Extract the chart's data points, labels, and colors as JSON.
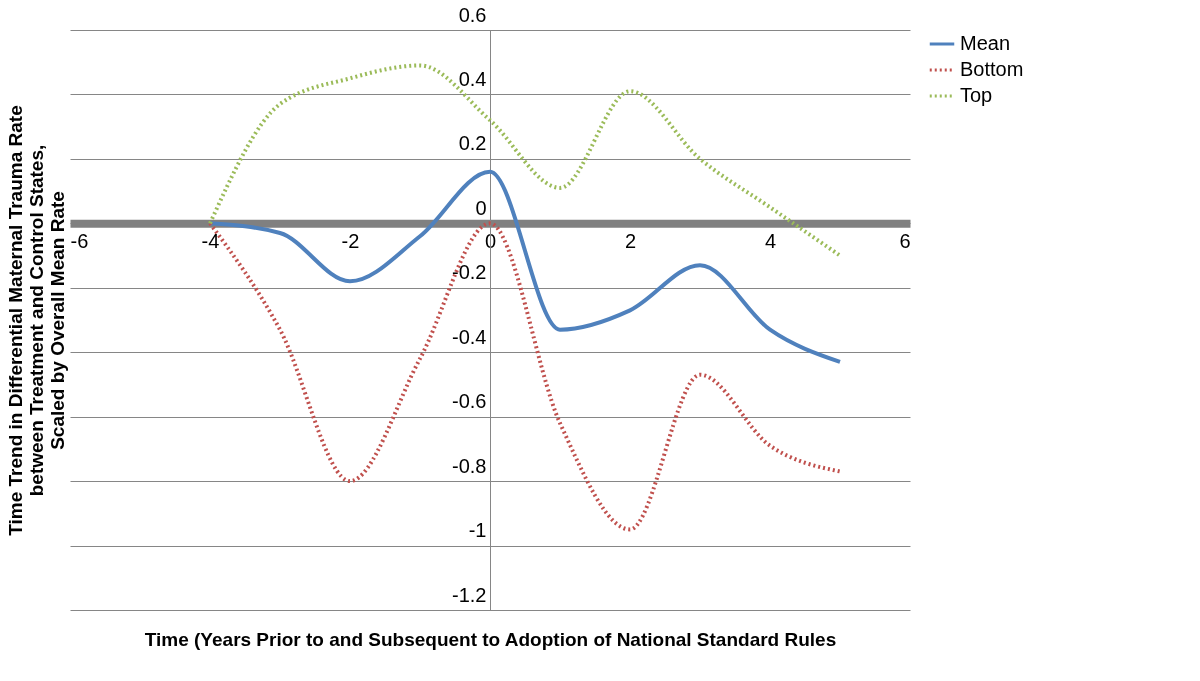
{
  "chart_data": {
    "type": "line",
    "xlabel": "Time (Years Prior to and Subsequent to Adoption of National Standard Rules",
    "ylabel": "Time Trend in Differential Maternal Trauma Rate\nbetween Treatment and Control States,\nScaled by Overall Mean Rate",
    "x": [
      -4,
      -3,
      -2,
      -1,
      0,
      1,
      2,
      3,
      4,
      5
    ],
    "series": [
      {
        "name": "Mean",
        "color": "#4f81bd",
        "line_style": "solid",
        "values": [
          0,
          -0.03,
          -0.18,
          -0.04,
          0.16,
          -0.33,
          -0.27,
          -0.13,
          -0.33,
          -0.43
        ]
      },
      {
        "name": "Bottom",
        "color": "#c0504d",
        "line_style": "dotted",
        "values": [
          0,
          -0.33,
          -0.8,
          -0.42,
          0,
          -0.62,
          -0.95,
          -0.47,
          -0.69,
          -0.77
        ]
      },
      {
        "name": "Top",
        "color": "#9bbb59",
        "line_style": "dotted",
        "values": [
          0,
          0.37,
          0.45,
          0.49,
          0.32,
          0.11,
          0.41,
          0.2,
          0.05,
          -0.1
        ]
      }
    ],
    "xlim": [
      -6,
      6
    ],
    "xticks": [
      -6,
      -4,
      -2,
      0,
      2,
      4,
      6
    ],
    "ylim": [
      -1.2,
      0.6
    ],
    "yticks": [
      -1.2,
      -1,
      -0.8,
      -0.6,
      -0.4,
      -0.2,
      0,
      0.2,
      0.4,
      0.6
    ],
    "grid": "y",
    "legend": "right",
    "marker": "none"
  }
}
